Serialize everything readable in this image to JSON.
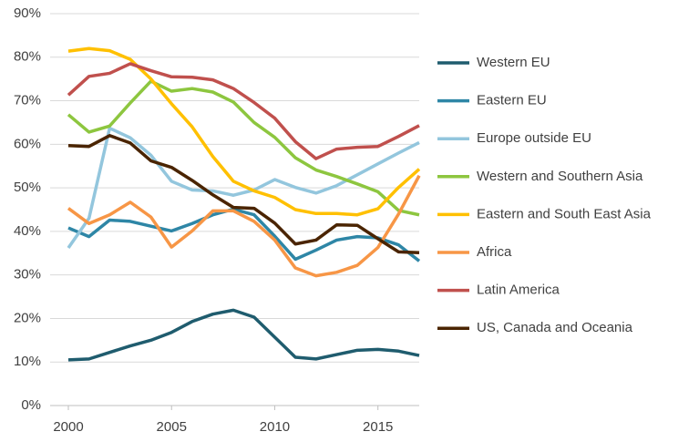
{
  "chart_data": {
    "type": "line",
    "x": [
      2000,
      2001,
      2002,
      2003,
      2004,
      2005,
      2006,
      2007,
      2008,
      2009,
      2010,
      2011,
      2012,
      2013,
      2014,
      2015,
      2016,
      2017
    ],
    "xlim": [
      2000,
      2017
    ],
    "xticks": [
      2000,
      2005,
      2010,
      2015
    ],
    "ylim": [
      0,
      90
    ],
    "yticks": [
      {
        "value": 0,
        "label": "0%"
      },
      {
        "value": 10,
        "label": "10%"
      },
      {
        "value": 20,
        "label": "20%"
      },
      {
        "value": 30,
        "label": "30%"
      },
      {
        "value": 40,
        "label": "40%"
      },
      {
        "value": 50,
        "label": "50%"
      },
      {
        "value": 60,
        "label": "60%"
      },
      {
        "value": 70,
        "label": "70%"
      },
      {
        "value": 80,
        "label": "80%"
      },
      {
        "value": 90,
        "label": "90%"
      }
    ],
    "grid": true,
    "legend": "right",
    "series": [
      {
        "name": "Western EU",
        "color": "#1f5c6e",
        "values": [
          10.5,
          10.7,
          12.2,
          13.7,
          15,
          16.8,
          19.3,
          21,
          21.9,
          20.3,
          15.7,
          11.1,
          10.7,
          11.7,
          12.7,
          12.9,
          12.5,
          11.5
        ]
      },
      {
        "name": "Eastern EU",
        "color": "#2e86a6",
        "values": [
          40.8,
          38.8,
          42.6,
          42.3,
          41.2,
          40.1,
          41.8,
          43.8,
          45.1,
          43.8,
          38.9,
          33.6,
          35.7,
          38,
          38.8,
          38.5,
          36.9,
          33.2
        ]
      },
      {
        "name": "Europe outside EU",
        "color": "#93c6dd",
        "values": [
          36.2,
          43,
          63.7,
          61.5,
          57.5,
          51.5,
          49.5,
          49.3,
          48.3,
          49.5,
          51.9,
          50.1,
          48.8,
          50.5,
          53,
          55.5,
          58,
          60.4
        ]
      },
      {
        "name": "Western and Southern Asia",
        "color": "#8dc63f",
        "values": [
          66.8,
          62.8,
          64.2,
          69.5,
          74.5,
          72.2,
          72.8,
          72,
          69.7,
          65,
          61.6,
          56.9,
          54.1,
          52.6,
          50.9,
          49.1,
          44.8,
          43.8
        ]
      },
      {
        "name": "Eastern and South East Asia",
        "color": "#ffc000",
        "values": [
          81.4,
          82,
          81.5,
          79.5,
          75,
          69.3,
          64,
          57.2,
          51.5,
          49.3,
          47.8,
          45,
          44.1,
          44.1,
          43.8,
          45.2,
          50.1,
          54.3
        ]
      },
      {
        "name": "Africa",
        "color": "#f79646",
        "values": [
          45.3,
          41.8,
          43.8,
          46.7,
          43.3,
          36.4,
          40.1,
          44.7,
          44.7,
          42.3,
          38,
          31.6,
          29.8,
          30.6,
          32.2,
          36.3,
          44,
          52.8
        ]
      },
      {
        "name": "Latin America",
        "color": "#c0504d",
        "values": [
          71.3,
          75.6,
          76.3,
          78.5,
          76.9,
          75.5,
          75.4,
          74.8,
          72.8,
          69.6,
          66,
          60.6,
          56.7,
          58.9,
          59.3,
          59.5,
          61.8,
          64.3
        ]
      },
      {
        "name": "US, Canada and Oceania",
        "color": "#4a2400",
        "values": [
          59.7,
          59.5,
          62,
          60.3,
          56.2,
          54.7,
          51.7,
          48.4,
          45.5,
          45.3,
          41.9,
          37.1,
          38,
          41.5,
          41.4,
          38.3,
          35.3,
          35.1
        ]
      }
    ]
  }
}
